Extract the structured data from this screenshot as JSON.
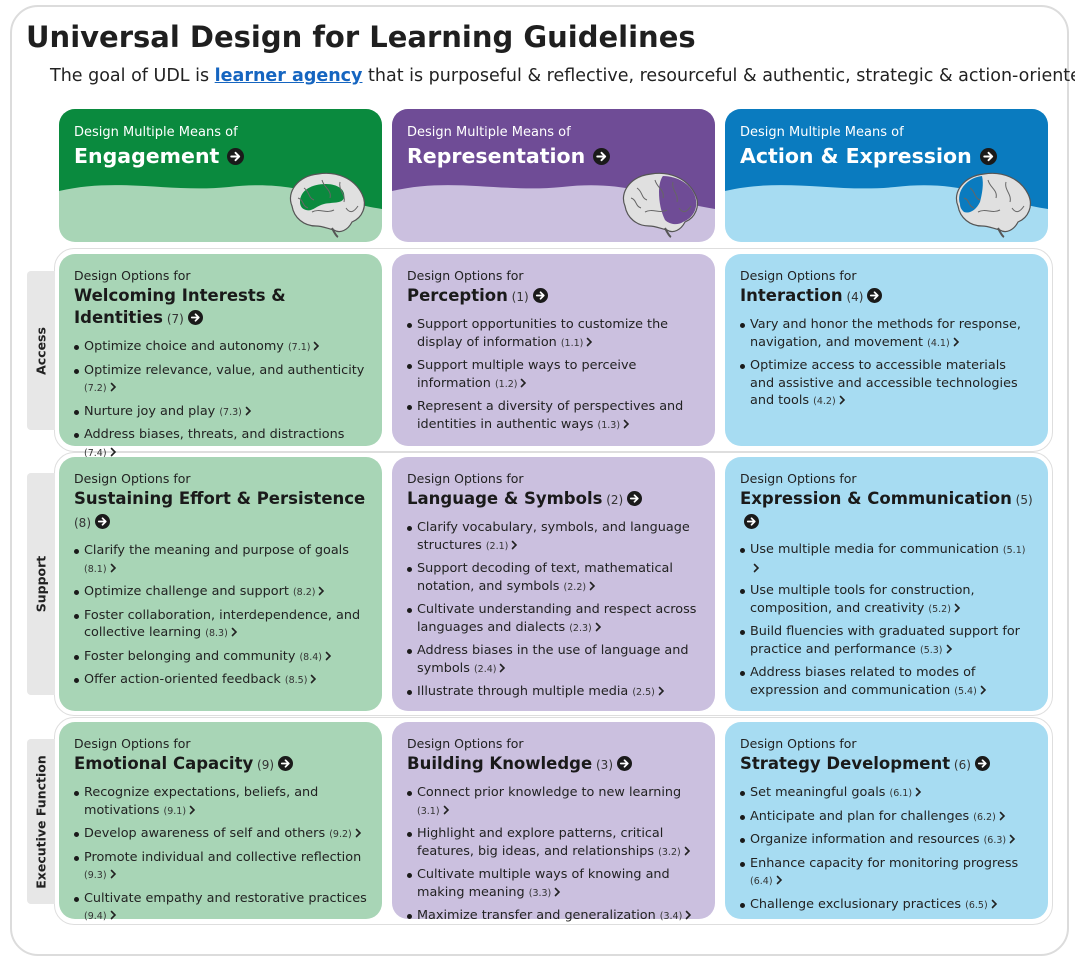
{
  "title": "Universal Design for Learning Guidelines",
  "goal": {
    "before": "The goal of UDL is ",
    "link": "learner agency",
    "after": " that is purposeful & reflective, resourceful & authentic, strategic & action-oriented."
  },
  "colors": {
    "engagement_dark": "#0a8a3e",
    "engagement_light": "#a8d5b6",
    "representation_dark": "#6f4c96",
    "representation_light": "#cbc0df",
    "action_dark": "#0a7bbf",
    "action_light": "#a7dcf2"
  },
  "columns": [
    {
      "pre": "Design Multiple Means of",
      "name": "Engagement"
    },
    {
      "pre": "Design Multiple Means of",
      "name": "Representation"
    },
    {
      "pre": "Design Multiple Means of",
      "name": "Action & Expression"
    }
  ],
  "rows": [
    "Access",
    "Support",
    "Executive Function"
  ],
  "cells": [
    {
      "pre": "Design Options for",
      "name": "Welcoming Interests & Identities",
      "num": "(7)",
      "items": [
        {
          "text": "Optimize choice and autonomy",
          "code": "(7.1)"
        },
        {
          "text": "Optimize relevance, value, and authenticity",
          "code": "(7.2)"
        },
        {
          "text": "Nurture joy and play",
          "code": "(7.3)"
        },
        {
          "text": "Address biases, threats, and distractions",
          "code": "(7.4)"
        }
      ]
    },
    {
      "pre": "Design Options for",
      "name": "Perception",
      "num": "(1)",
      "items": [
        {
          "text": "Support opportunities to customize the display of information",
          "code": "(1.1)"
        },
        {
          "text": "Support multiple ways to perceive information",
          "code": "(1.2)"
        },
        {
          "text": "Represent a diversity of perspectives and identities in authentic ways",
          "code": "(1.3)"
        }
      ]
    },
    {
      "pre": "Design Options for",
      "name": "Interaction",
      "num": "(4)",
      "items": [
        {
          "text": "Vary and honor the methods for response, navigation, and movement",
          "code": "(4.1)"
        },
        {
          "text": "Optimize access to accessible materials and assistive and accessible technologies and tools",
          "code": "(4.2)"
        }
      ]
    },
    {
      "pre": "Design Options for",
      "name": "Sustaining Effort & Persistence",
      "num": "(8)",
      "items": [
        {
          "text": "Clarify the meaning and purpose of goals",
          "code": "(8.1)"
        },
        {
          "text": "Optimize challenge and support",
          "code": "(8.2)"
        },
        {
          "text": "Foster collaboration, interdependence, and collective learning",
          "code": "(8.3)"
        },
        {
          "text": "Foster belonging and community",
          "code": "(8.4)"
        },
        {
          "text": "Offer action-oriented feedback",
          "code": "(8.5)"
        }
      ]
    },
    {
      "pre": "Design Options for",
      "name": "Language & Symbols",
      "num": "(2)",
      "items": [
        {
          "text": "Clarify vocabulary, symbols, and language structures",
          "code": "(2.1)"
        },
        {
          "text": "Support decoding of text, mathematical notation, and symbols",
          "code": "(2.2)"
        },
        {
          "text": "Cultivate understanding and respect across languages and dialects",
          "code": "(2.3)"
        },
        {
          "text": "Address biases in the use of language and symbols",
          "code": "(2.4)"
        },
        {
          "text": "Illustrate through multiple media",
          "code": "(2.5)"
        }
      ]
    },
    {
      "pre": "Design Options for",
      "name": "Expression & Communication",
      "num": "(5)",
      "items": [
        {
          "text": "Use multiple media for communication",
          "code": "(5.1)"
        },
        {
          "text": "Use multiple tools for construction, composition, and creativity",
          "code": "(5.2)"
        },
        {
          "text": "Build fluencies with graduated support for practice and performance",
          "code": "(5.3)"
        },
        {
          "text": "Address biases related to modes of expression and communication",
          "code": "(5.4)"
        }
      ]
    },
    {
      "pre": "Design Options for",
      "name": "Emotional Capacity",
      "num": "(9)",
      "items": [
        {
          "text": "Recognize expectations, beliefs, and motivations",
          "code": "(9.1)"
        },
        {
          "text": "Develop awareness of self and others",
          "code": "(9.2)"
        },
        {
          "text": "Promote individual and collective reflection",
          "code": "(9.3)"
        },
        {
          "text": "Cultivate empathy and restorative practices",
          "code": "(9.4)"
        }
      ]
    },
    {
      "pre": "Design Options for",
      "name": "Building Knowledge",
      "num": "(3)",
      "items": [
        {
          "text": "Connect prior knowledge to new learning",
          "code": "(3.1)"
        },
        {
          "text": "Highlight and explore patterns, critical features, big ideas, and relationships",
          "code": "(3.2)"
        },
        {
          "text": "Cultivate multiple ways of knowing and making meaning",
          "code": "(3.3)"
        },
        {
          "text": "Maximize transfer and generalization",
          "code": "(3.4)"
        }
      ]
    },
    {
      "pre": "Design Options for",
      "name": "Strategy Development",
      "num": "(6)",
      "items": [
        {
          "text": "Set meaningful goals",
          "code": "(6.1)"
        },
        {
          "text": "Anticipate and plan for challenges",
          "code": "(6.2)"
        },
        {
          "text": "Organize information and resources",
          "code": "(6.3)"
        },
        {
          "text": "Enhance capacity for monitoring progress",
          "code": "(6.4)"
        },
        {
          "text": "Challenge exclusionary practices",
          "code": "(6.5)"
        }
      ]
    }
  ]
}
